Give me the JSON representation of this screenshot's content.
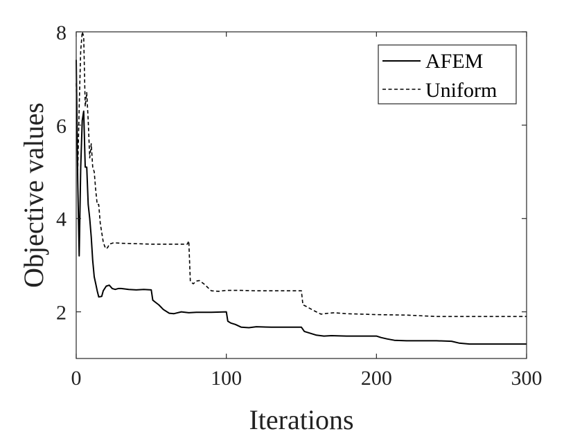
{
  "chart_data": {
    "type": "line",
    "title": "",
    "xlabel": "Iterations",
    "ylabel": "Objective values",
    "xlim": [
      0,
      300
    ],
    "ylim": [
      1,
      8
    ],
    "xticks": [
      0,
      100,
      200,
      300
    ],
    "yticks": [
      2,
      4,
      6,
      8
    ],
    "xtick_labels": [
      "0",
      "100",
      "200",
      "300"
    ],
    "ytick_labels": [
      "2",
      "4",
      "6",
      "8"
    ],
    "grid": false,
    "legend_position": "top-right",
    "series": [
      {
        "name": "AFEM",
        "style": "solid",
        "color": "#000000",
        "x": [
          0,
          1,
          2,
          3,
          4,
          5,
          6,
          7,
          8,
          9,
          10,
          11,
          12,
          13,
          14,
          15,
          17,
          18,
          20,
          22,
          24,
          26,
          28,
          30,
          35,
          40,
          45,
          50,
          51,
          53,
          55,
          58,
          62,
          65,
          70,
          75,
          80,
          90,
          100,
          101,
          103,
          106,
          110,
          115,
          120,
          130,
          140,
          150,
          152,
          155,
          160,
          165,
          170,
          180,
          190,
          200,
          203,
          207,
          212,
          220,
          230,
          240,
          250,
          255,
          262,
          270,
          280,
          290,
          300
        ],
        "y": [
          7.4,
          4.8,
          3.2,
          5.1,
          6.1,
          6.3,
          5.1,
          5.1,
          4.3,
          4.0,
          3.6,
          3.1,
          2.75,
          2.6,
          2.45,
          2.32,
          2.33,
          2.45,
          2.55,
          2.57,
          2.5,
          2.48,
          2.5,
          2.5,
          2.48,
          2.47,
          2.48,
          2.47,
          2.25,
          2.2,
          2.15,
          2.05,
          1.97,
          1.96,
          2.0,
          1.98,
          1.99,
          1.99,
          2.0,
          1.8,
          1.76,
          1.73,
          1.67,
          1.66,
          1.68,
          1.67,
          1.67,
          1.67,
          1.58,
          1.55,
          1.5,
          1.48,
          1.49,
          1.48,
          1.48,
          1.48,
          1.45,
          1.42,
          1.39,
          1.38,
          1.38,
          1.38,
          1.37,
          1.33,
          1.31,
          1.31,
          1.31,
          1.31,
          1.31
        ]
      },
      {
        "name": "Uniform",
        "style": "dashed",
        "color": "#000000",
        "x": [
          0,
          1,
          2,
          3,
          4,
          5,
          6,
          7,
          8,
          9,
          10,
          11,
          12,
          13,
          14,
          15,
          16,
          17,
          18,
          19,
          20,
          21,
          22,
          25,
          30,
          40,
          50,
          60,
          70,
          74,
          75,
          76,
          78,
          80,
          82,
          85,
          90,
          95,
          100,
          110,
          120,
          130,
          140,
          150,
          151,
          153,
          158,
          163,
          168,
          172,
          180,
          190,
          200,
          220,
          240,
          260,
          280,
          300
        ],
        "y": [
          6.9,
          5.0,
          6.4,
          7.6,
          8.0,
          7.9,
          6.4,
          6.7,
          6.1,
          5.3,
          5.6,
          5.1,
          5.0,
          4.6,
          4.3,
          4.3,
          3.9,
          3.7,
          3.5,
          3.4,
          3.35,
          3.38,
          3.45,
          3.48,
          3.47,
          3.46,
          3.45,
          3.45,
          3.45,
          3.45,
          3.52,
          2.65,
          2.6,
          2.66,
          2.67,
          2.6,
          2.45,
          2.44,
          2.46,
          2.46,
          2.45,
          2.45,
          2.45,
          2.45,
          2.15,
          2.12,
          2.03,
          1.95,
          1.97,
          1.98,
          1.96,
          1.95,
          1.94,
          1.93,
          1.9,
          1.9,
          1.9,
          1.9
        ]
      }
    ]
  }
}
